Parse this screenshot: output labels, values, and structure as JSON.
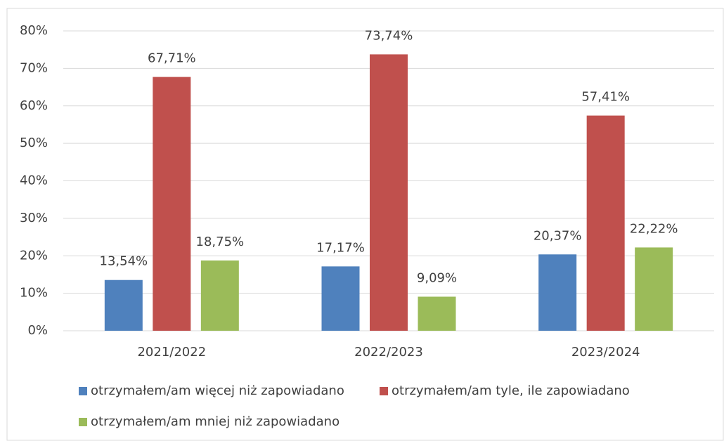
{
  "chart_data": {
    "type": "bar",
    "categories": [
      "2021/2022",
      "2022/2023",
      "2023/2024"
    ],
    "series": [
      {
        "name": "otrzymałem/am więcej niż zapowiadano",
        "color": "#4f81bd",
        "values": [
          13.54,
          17.17,
          20.37
        ],
        "value_labels": [
          "13,54%",
          "17,17%",
          "20,37%"
        ]
      },
      {
        "name": "otrzymałem/am tyle, ile zapowiadano",
        "color": "#c0504d",
        "values": [
          67.71,
          73.74,
          57.41
        ],
        "value_labels": [
          "67,71%",
          "73,74%",
          "57,41%"
        ]
      },
      {
        "name": "otrzymałem/am mniej niż zapowiadano",
        "color": "#9bbb59",
        "values": [
          18.75,
          9.09,
          22.22
        ],
        "value_labels": [
          "18,75%",
          "9,09%",
          "22,22%"
        ]
      }
    ],
    "ylim": [
      0,
      80
    ],
    "yticks": [
      {
        "value": 0,
        "label": "0%"
      },
      {
        "value": 10,
        "label": "10%"
      },
      {
        "value": 20,
        "label": "20%"
      },
      {
        "value": 30,
        "label": "30%"
      },
      {
        "value": 40,
        "label": "40%"
      },
      {
        "value": 50,
        "label": "50%"
      },
      {
        "value": 60,
        "label": "60%"
      },
      {
        "value": 70,
        "label": "70%"
      },
      {
        "value": 80,
        "label": "80%"
      }
    ],
    "grid": true,
    "legend": "bottom"
  }
}
